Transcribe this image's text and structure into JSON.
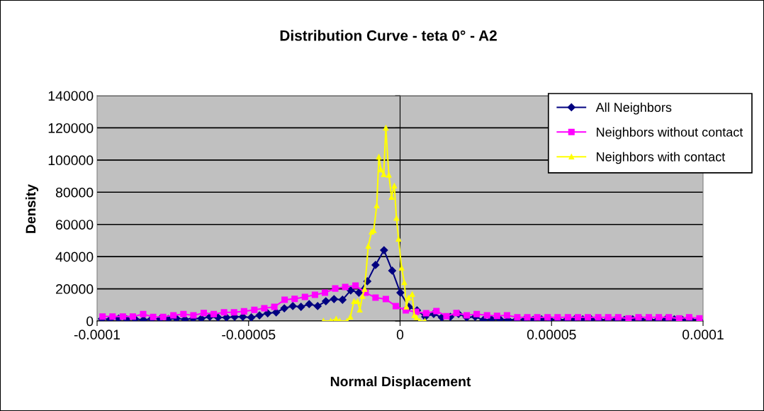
{
  "chart_data": {
    "type": "line",
    "title": "Distribution Curve - teta 0° - A2",
    "xlabel": "Normal Displacement",
    "ylabel": "Density",
    "xlim": [
      -0.0001,
      0.0001
    ],
    "xticks": [
      {
        "value": -0.0001,
        "label": "-0.0001"
      },
      {
        "value": -5e-05,
        "label": "-0.00005"
      },
      {
        "value": 0,
        "label": "0"
      },
      {
        "value": 5e-05,
        "label": "0.00005"
      },
      {
        "value": 0.0001,
        "label": "0.0001"
      }
    ],
    "ylim": [
      0,
      140000
    ],
    "yticks": [
      0,
      20000,
      40000,
      60000,
      80000,
      100000,
      120000,
      140000
    ],
    "grid": "y",
    "legend": "top right",
    "series": [
      {
        "name": "All Neighbors",
        "color": "#000080",
        "marker": "diamond",
        "x": [
          -9.84e-05,
          -9.57e-05,
          -9.29e-05,
          -9.02e-05,
          -8.75e-05,
          -8.47e-05,
          -8.2e-05,
          -7.92e-05,
          -7.65e-05,
          -7.38e-05,
          -7.1e-05,
          -6.83e-05,
          -6.56e-05,
          -6.28e-05,
          -6.01e-05,
          -5.73e-05,
          -5.46e-05,
          -5.19e-05,
          -4.91e-05,
          -4.64e-05,
          -4.37e-05,
          -4.09e-05,
          -3.82e-05,
          -3.54e-05,
          -3.27e-05,
          -3e-05,
          -2.72e-05,
          -2.45e-05,
          -2.18e-05,
          -1.9e-05,
          -1.63e-05,
          -1.36e-05,
          -1.08e-05,
          -8.1e-06,
          -5.3e-06,
          -2.6e-06,
          1e-07,
          2.9e-06,
          5.6e-06,
          8.3e-06,
          1.11e-05,
          1.38e-05,
          1.66e-05,
          1.93e-05,
          2.2e-05,
          2.48e-05,
          2.75e-05,
          3.02e-05,
          3.3e-05,
          3.57e-05,
          3.85e-05,
          4.12e-05,
          4.39e-05,
          4.67e-05,
          4.94e-05,
          5.21e-05,
          5.49e-05,
          5.76e-05,
          6.03e-05,
          6.31e-05,
          6.58e-05,
          6.86e-05,
          7.13e-05,
          7.4e-05,
          7.68e-05,
          7.95e-05,
          8.22e-05,
          8.5e-05,
          8.77e-05,
          9.05e-05,
          9.32e-05,
          9.59e-05,
          9.87e-05
        ],
        "values": [
          1300,
          1000,
          1500,
          1000,
          1300,
          700,
          1300,
          1300,
          1300,
          1500,
          1000,
          1500,
          1500,
          2600,
          2200,
          2200,
          2600,
          2600,
          2200,
          3500,
          4800,
          5400,
          7900,
          9300,
          8800,
          10500,
          9300,
          12300,
          13600,
          13200,
          19000,
          17600,
          24700,
          34800,
          44000,
          31300,
          17600,
          8800,
          6600,
          2600,
          4400,
          2200,
          2600,
          4400,
          2200,
          2600,
          600,
          1000,
          1000,
          700,
          1000,
          1000,
          700,
          1000,
          1000,
          1000,
          700,
          1000,
          1000,
          1000,
          700,
          1000,
          1000,
          700,
          1000,
          1000,
          1000,
          700,
          1000,
          1000,
          700,
          1000,
          700
        ]
      },
      {
        "name": "Neighbors without contact",
        "color": "#ff00ff",
        "marker": "square",
        "x": [
          -9.82e-05,
          -9.49e-05,
          -9.15e-05,
          -8.82e-05,
          -8.48e-05,
          -8.15e-05,
          -7.82e-05,
          -7.48e-05,
          -7.15e-05,
          -6.82e-05,
          -6.48e-05,
          -6.15e-05,
          -5.81e-05,
          -5.48e-05,
          -5.15e-05,
          -4.81e-05,
          -4.48e-05,
          -4.15e-05,
          -3.81e-05,
          -3.48e-05,
          -3.14e-05,
          -2.81e-05,
          -2.48e-05,
          -2.14e-05,
          -1.81e-05,
          -1.47e-05,
          -1.14e-05,
          -8.1e-06,
          -4.7e-06,
          -1.4e-06,
          1.9e-06,
          5.3e-06,
          8.6e-06,
          1.2e-05,
          1.53e-05,
          1.86e-05,
          2.2e-05,
          2.53e-05,
          2.87e-05,
          3.2e-05,
          3.53e-05,
          3.87e-05,
          4.2e-05,
          4.53e-05,
          4.87e-05,
          5.2e-05,
          5.54e-05,
          5.87e-05,
          6.2e-05,
          6.54e-05,
          6.87e-05,
          7.2e-05,
          7.54e-05,
          7.87e-05,
          8.21e-05,
          8.54e-05,
          8.87e-05,
          9.21e-05,
          9.54e-05,
          9.88e-05
        ],
        "values": [
          2800,
          2800,
          2800,
          2800,
          4300,
          2500,
          2500,
          3500,
          4300,
          3500,
          5000,
          4300,
          5400,
          5400,
          6000,
          6900,
          7900,
          8800,
          13200,
          13800,
          15000,
          16300,
          17600,
          20200,
          21100,
          22000,
          17600,
          14500,
          13600,
          9200,
          6600,
          5700,
          4800,
          6200,
          3000,
          5000,
          3500,
          4300,
          3500,
          3200,
          3500,
          2300,
          2300,
          2300,
          2300,
          2300,
          2300,
          2300,
          2300,
          2300,
          2300,
          2300,
          1600,
          2300,
          2300,
          2300,
          2300,
          1600,
          2300,
          1600
        ]
      },
      {
        "name": "Neighbors with contact",
        "color": "#ffff00",
        "marker": "triangle",
        "x": [
          -2.53e-05,
          -2.29e-05,
          -2.11e-05,
          -1.99e-05,
          -1.75e-05,
          -1.64e-05,
          -1.52e-05,
          -1.4e-05,
          -1.33e-05,
          -1.24e-05,
          -1.17e-05,
          -1.05e-05,
          -9.4e-06,
          -8.7e-06,
          -7.7e-06,
          -7e-06,
          -6.3e-06,
          -5.4e-06,
          -4.7e-06,
          -3.7e-06,
          -2.8e-06,
          -1.9e-06,
          -1.2e-06,
          -5e-07,
          5e-07,
          1.4e-06,
          2.1e-06,
          2.8e-06,
          4e-06,
          4.7e-06,
          5.4e-06,
          6.5e-06,
          8.2e-06
        ],
        "values": [
          0,
          0,
          1300,
          0,
          0,
          2600,
          12300,
          12300,
          7000,
          15400,
          19800,
          46600,
          55400,
          56300,
          71700,
          102000,
          94000,
          91000,
          120000,
          90700,
          77000,
          84000,
          64000,
          51000,
          33000,
          24000,
          8800,
          14500,
          16700,
          3500,
          2200,
          0,
          0
        ]
      }
    ]
  }
}
